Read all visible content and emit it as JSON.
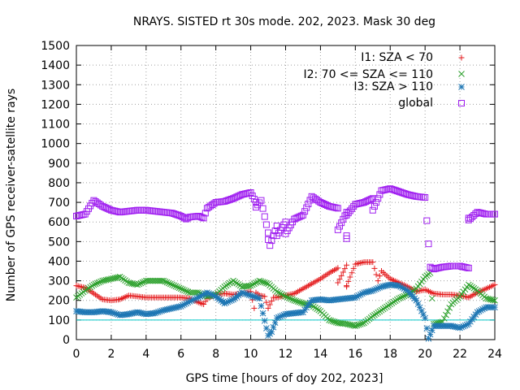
{
  "chart_data": {
    "type": "scatter",
    "title": "NRAYS. SISTED rt 30s mode. 202, 2023. Mask 30 deg",
    "xlabel": "GPS time [hours of doy 202, 2023]",
    "ylabel": "Number of GPS receiver-satellite rays",
    "xlim": [
      0,
      24
    ],
    "ylim": [
      0,
      1500
    ],
    "xticks": [
      0,
      2,
      4,
      6,
      8,
      10,
      12,
      14,
      16,
      18,
      20,
      22,
      24
    ],
    "yticks": [
      0,
      100,
      200,
      300,
      400,
      500,
      600,
      700,
      800,
      900,
      1000,
      1100,
      1200,
      1300,
      1400,
      1500
    ],
    "grid": true,
    "legend_position": "top-right",
    "reference_line": {
      "y": 100,
      "color": "#00c8c8"
    },
    "series": [
      {
        "name": "I1: SZA < 70",
        "marker": "plus",
        "color": "#e41a1c",
        "points": [
          [
            0,
            275
          ],
          [
            0.5,
            265
          ],
          [
            1,
            235
          ],
          [
            1.5,
            205
          ],
          [
            2,
            200
          ],
          [
            2.5,
            205
          ],
          [
            3,
            225
          ],
          [
            3.5,
            220
          ],
          [
            4,
            215
          ],
          [
            4.5,
            215
          ],
          [
            5,
            215
          ],
          [
            5.5,
            215
          ],
          [
            6,
            215
          ],
          [
            6.5,
            210
          ],
          [
            7,
            190
          ],
          [
            7.3,
            180
          ],
          [
            7.5,
            210
          ],
          [
            8,
            230
          ],
          [
            8.5,
            235
          ],
          [
            9,
            230
          ],
          [
            9.5,
            235
          ],
          [
            10,
            245
          ],
          [
            10.3,
            240
          ],
          [
            10.5,
            225
          ],
          [
            10.8,
            220
          ],
          [
            11,
            160
          ],
          [
            11.3,
            215
          ],
          [
            11.5,
            215
          ],
          [
            12,
            225
          ],
          [
            12.5,
            235
          ],
          [
            13,
            260
          ],
          [
            13.5,
            285
          ],
          [
            14,
            310
          ],
          [
            14.5,
            340
          ],
          [
            15,
            365
          ],
          [
            15.5,
            380
          ],
          [
            16,
            385
          ],
          [
            16.5,
            395
          ],
          [
            17,
            395
          ],
          [
            17.5,
            350
          ],
          [
            18,
            310
          ],
          [
            18.5,
            290
          ],
          [
            19,
            270
          ],
          [
            19.5,
            245
          ],
          [
            20,
            255
          ],
          [
            20.5,
            235
          ],
          [
            21,
            230
          ],
          [
            21.5,
            230
          ],
          [
            22,
            225
          ],
          [
            22.5,
            215
          ],
          [
            23,
            240
          ],
          [
            23.5,
            260
          ],
          [
            24,
            280
          ],
          [
            10.2,
            160
          ],
          [
            15,
            290
          ],
          [
            15.5,
            270
          ],
          [
            15.5,
            275
          ],
          [
            17.3,
            300
          ]
        ]
      },
      {
        "name": "I2: 70 <= SZA <= 110",
        "marker": "x",
        "color": "#2ca02c",
        "points": [
          [
            0,
            215
          ],
          [
            0.5,
            250
          ],
          [
            1,
            280
          ],
          [
            1.5,
            300
          ],
          [
            2,
            310
          ],
          [
            2.5,
            320
          ],
          [
            3,
            290
          ],
          [
            3.5,
            280
          ],
          [
            4,
            300
          ],
          [
            4.5,
            300
          ],
          [
            5,
            300
          ],
          [
            5.5,
            280
          ],
          [
            6,
            260
          ],
          [
            6.5,
            240
          ],
          [
            7,
            240
          ],
          [
            7.5,
            220
          ],
          [
            8,
            230
          ],
          [
            8.5,
            270
          ],
          [
            9,
            300
          ],
          [
            9.5,
            270
          ],
          [
            10,
            275
          ],
          [
            10.5,
            300
          ],
          [
            11,
            285
          ],
          [
            11.5,
            245
          ],
          [
            12,
            220
          ],
          [
            12.5,
            200
          ],
          [
            13,
            185
          ],
          [
            13.5,
            175
          ],
          [
            14,
            145
          ],
          [
            14.5,
            100
          ],
          [
            15,
            85
          ],
          [
            15.5,
            80
          ],
          [
            16,
            70
          ],
          [
            16.5,
            85
          ],
          [
            17,
            120
          ],
          [
            17.5,
            150
          ],
          [
            18,
            180
          ],
          [
            18.5,
            210
          ],
          [
            19,
            230
          ],
          [
            19.5,
            260
          ],
          [
            20,
            320
          ],
          [
            20.3,
            340
          ],
          [
            20.5,
            80
          ],
          [
            21,
            90
          ],
          [
            21.5,
            180
          ],
          [
            22,
            220
          ],
          [
            22.5,
            280
          ],
          [
            23,
            250
          ],
          [
            23.5,
            210
          ],
          [
            24,
            200
          ]
        ]
      },
      {
        "name": "I3: SZA > 110",
        "marker": "star",
        "color": "#1f77b4",
        "points": [
          [
            0,
            145
          ],
          [
            0.5,
            140
          ],
          [
            1,
            140
          ],
          [
            1.5,
            145
          ],
          [
            2,
            140
          ],
          [
            2.5,
            125
          ],
          [
            3,
            130
          ],
          [
            3.5,
            140
          ],
          [
            4,
            130
          ],
          [
            4.5,
            135
          ],
          [
            5,
            150
          ],
          [
            5.5,
            160
          ],
          [
            6,
            170
          ],
          [
            6.5,
            195
          ],
          [
            7,
            215
          ],
          [
            7.5,
            240
          ],
          [
            8,
            220
          ],
          [
            8.5,
            185
          ],
          [
            9,
            205
          ],
          [
            9.5,
            240
          ],
          [
            10,
            225
          ],
          [
            10.5,
            210
          ],
          [
            11,
            20
          ],
          [
            11.2,
            40
          ],
          [
            11.5,
            110
          ],
          [
            12,
            130
          ],
          [
            12.5,
            135
          ],
          [
            13,
            140
          ],
          [
            13.5,
            200
          ],
          [
            14,
            205
          ],
          [
            14.5,
            200
          ],
          [
            15,
            205
          ],
          [
            15.5,
            210
          ],
          [
            16,
            215
          ],
          [
            16.5,
            240
          ],
          [
            17,
            250
          ],
          [
            17.5,
            270
          ],
          [
            18,
            280
          ],
          [
            18.5,
            275
          ],
          [
            19,
            250
          ],
          [
            19.5,
            200
          ],
          [
            20,
            110
          ],
          [
            20.2,
            5
          ],
          [
            20.5,
            70
          ],
          [
            21,
            70
          ],
          [
            21.5,
            70
          ],
          [
            22,
            60
          ],
          [
            22.5,
            80
          ],
          [
            23,
            140
          ],
          [
            23.5,
            165
          ],
          [
            24,
            165
          ]
        ]
      },
      {
        "name": "global",
        "marker": "square",
        "color": "#a020f0",
        "points": [
          [
            0,
            630
          ],
          [
            0.5,
            640
          ],
          [
            1,
            710
          ],
          [
            1.5,
            680
          ],
          [
            2,
            660
          ],
          [
            2.5,
            650
          ],
          [
            3,
            655
          ],
          [
            3.5,
            660
          ],
          [
            4,
            660
          ],
          [
            4.5,
            655
          ],
          [
            5,
            650
          ],
          [
            5.5,
            645
          ],
          [
            6,
            630
          ],
          [
            6.3,
            615
          ],
          [
            6.5,
            625
          ],
          [
            7,
            630
          ],
          [
            7.3,
            620
          ],
          [
            7.5,
            670
          ],
          [
            8,
            700
          ],
          [
            8.5,
            705
          ],
          [
            9,
            720
          ],
          [
            9.5,
            740
          ],
          [
            10,
            750
          ],
          [
            10.3,
            700
          ],
          [
            10.6,
            710
          ],
          [
            11,
            545
          ],
          [
            11,
            510
          ],
          [
            11.1,
            480
          ],
          [
            11.5,
            580
          ],
          [
            12,
            600
          ],
          [
            12.5,
            615
          ],
          [
            13,
            635
          ],
          [
            13.5,
            730
          ],
          [
            14,
            700
          ],
          [
            14.5,
            680
          ],
          [
            15,
            670
          ],
          [
            15.5,
            650
          ],
          [
            16,
            690
          ],
          [
            16.5,
            700
          ],
          [
            17,
            720
          ],
          [
            17.5,
            760
          ],
          [
            18,
            770
          ],
          [
            18.5,
            755
          ],
          [
            19,
            740
          ],
          [
            19.5,
            730
          ],
          [
            20,
            725
          ],
          [
            20.3,
            370
          ],
          [
            20.5,
            360
          ],
          [
            21,
            370
          ],
          [
            21.5,
            375
          ],
          [
            22,
            375
          ],
          [
            22.5,
            365
          ],
          [
            22.5,
            620
          ],
          [
            23,
            650
          ],
          [
            23.5,
            640
          ],
          [
            24,
            640
          ],
          [
            11.5,
            530
          ],
          [
            12,
            540
          ],
          [
            15,
            560
          ],
          [
            15.5,
            530
          ],
          [
            15.5,
            515
          ],
          [
            15.5,
            635
          ],
          [
            17,
            660
          ],
          [
            10.3,
            675
          ],
          [
            22.5,
            610
          ]
        ]
      }
    ]
  }
}
